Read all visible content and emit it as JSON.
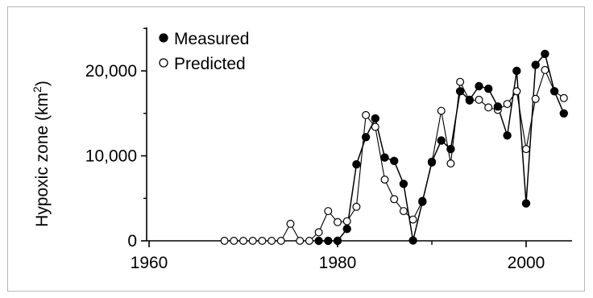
{
  "chart_data": {
    "type": "line",
    "title": "",
    "xlabel": "",
    "ylabel": "Hypoxic zone (km",
    "ylabel_superscript": "2",
    "ylabel_suffix": ")",
    "xlim": [
      1960,
      2004
    ],
    "ylim": [
      0,
      25000
    ],
    "x_ticks": [
      1960,
      1980,
      2000
    ],
    "x_tick_labels": [
      "1960",
      "1980",
      "2000"
    ],
    "y_ticks": [
      0,
      10000,
      20000
    ],
    "y_tick_labels": [
      "0",
      "10,000",
      "20,000"
    ],
    "grid": false,
    "legend_position": "top-left",
    "series": [
      {
        "name": "Measured",
        "marker": "filled-circle",
        "color": "#000000",
        "x": [
          1978,
          1979,
          1980,
          1981,
          1982,
          1983,
          1984,
          1985,
          1986,
          1987,
          1988,
          1989,
          1990,
          1991,
          1992,
          1993,
          1994,
          1995,
          1996,
          1997,
          1998,
          1999,
          2000,
          2001,
          2002,
          2003,
          2004
        ],
        "values": [
          0,
          0,
          0,
          1400,
          9000,
          12200,
          14400,
          9800,
          9400,
          6700,
          40,
          4600,
          9300,
          11800,
          10800,
          17600,
          16600,
          18200,
          17900,
          15800,
          12400,
          20000,
          4400,
          20700,
          22000,
          17600,
          15000
        ]
      },
      {
        "name": "Predicted",
        "marker": "open-circle",
        "color": "#000000",
        "x": [
          1968,
          1969,
          1970,
          1971,
          1972,
          1973,
          1974,
          1975,
          1976,
          1977,
          1978,
          1979,
          1980,
          1981,
          1982,
          1983,
          1984,
          1985,
          1986,
          1987,
          1988,
          1989,
          1990,
          1991,
          1992,
          1993,
          1994,
          1995,
          1996,
          1997,
          1998,
          1999,
          2000,
          2001,
          2002,
          2003,
          2004
        ],
        "values": [
          0,
          0,
          0,
          0,
          0,
          0,
          0,
          2000,
          0,
          0,
          1000,
          3500,
          2200,
          2300,
          4000,
          14800,
          13400,
          7200,
          4900,
          3500,
          2500,
          4700,
          9200,
          15300,
          9100,
          18700,
          16500,
          16600,
          15700,
          15400,
          16100,
          17600,
          10800,
          16700,
          20100,
          17600,
          16800
        ]
      }
    ]
  }
}
